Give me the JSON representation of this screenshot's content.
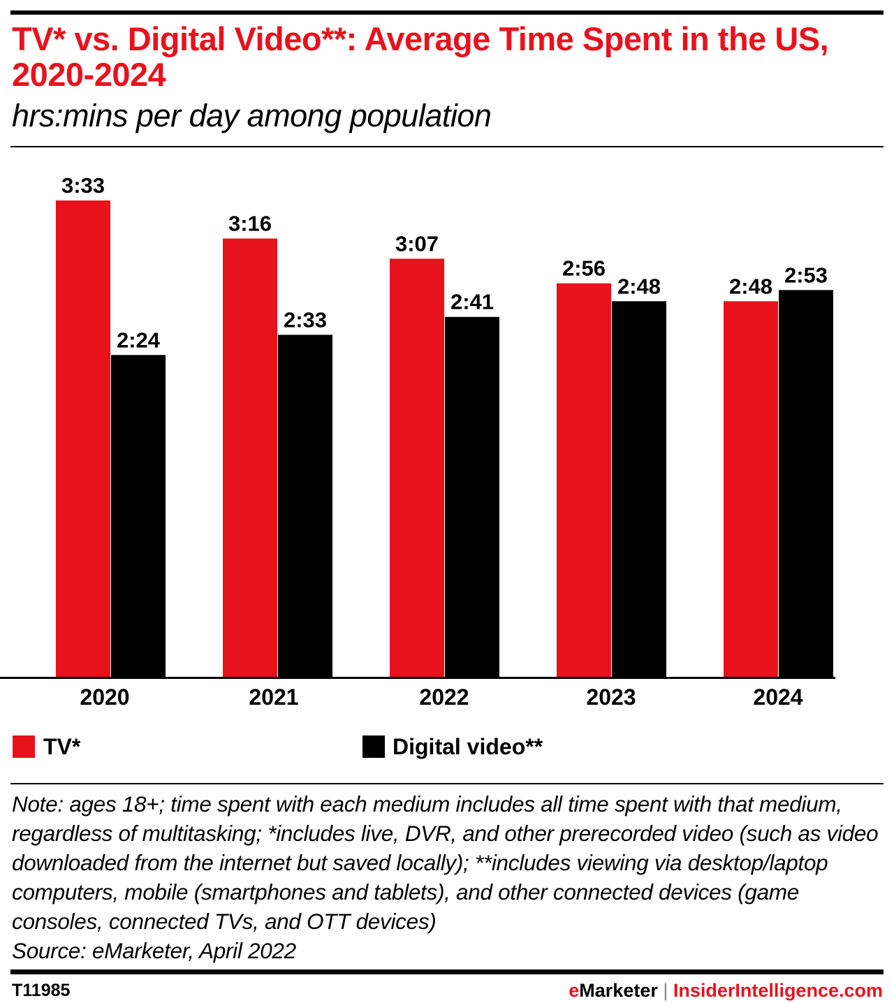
{
  "header": {
    "title": "TV* vs. Digital Video**: Average Time Spent in the US, 2020-2024",
    "subtitle": "hrs:mins per day among population"
  },
  "chart_data": {
    "type": "bar",
    "title": "TV* vs. Digital Video**: Average Time Spent in the US, 2020-2024",
    "subtitle": "hrs:mins per day among population",
    "categories": [
      "2020",
      "2021",
      "2022",
      "2023",
      "2024"
    ],
    "series": [
      {
        "name": "TV*",
        "color": "#e8121d",
        "values": [
          "3:33",
          "3:16",
          "3:07",
          "2:56",
          "2:48"
        ]
      },
      {
        "name": "Digital video**",
        "color": "#000000",
        "values": [
          "2:24",
          "2:33",
          "2:41",
          "2:48",
          "2:53"
        ]
      }
    ],
    "ylim": [
      "0:00",
      "3:33"
    ],
    "grid": false,
    "legend": "bottom"
  },
  "legend": {
    "items": [
      {
        "label": "TV*",
        "color": "#e8121d"
      },
      {
        "label": "Digital video**",
        "color": "#000000"
      }
    ]
  },
  "note": "Note: ages 18+; time spent with each medium includes all time spent with that medium, regardless of multitasking; *includes live, DVR, and other prerecorded video (such as video downloaded from the internet but saved locally); **includes viewing via desktop/laptop computers, mobile (smartphones and tablets), and other connected devices (game consoles, connected TVs, and OTT devices)",
  "source": "Source: eMarketer, April 2022",
  "footer": {
    "chart_id": "T11985",
    "brand_e": "e",
    "brand_rest": "Marketer",
    "separator": "|",
    "site": "InsiderIntelligence.com"
  }
}
